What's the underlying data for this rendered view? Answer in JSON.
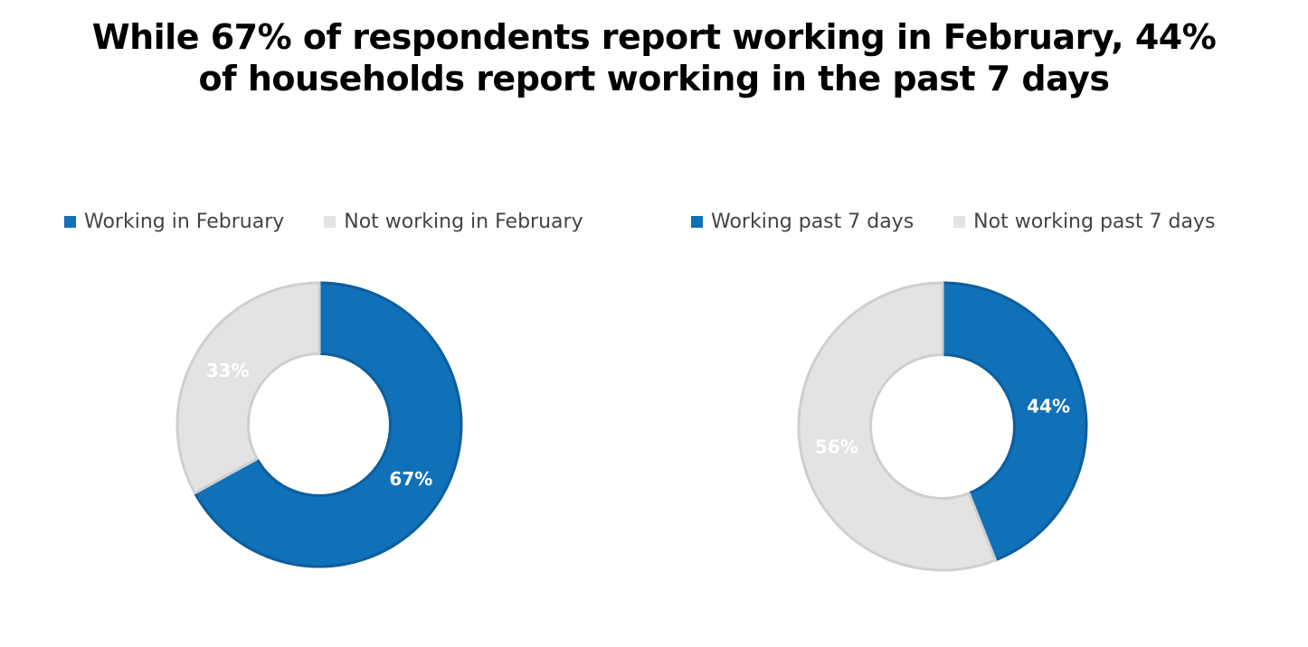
{
  "title": {
    "line1": "While 67% of respondents report working in February, 44%",
    "line2": "of households report working in the past 7 days"
  },
  "chart_data": [
    {
      "type": "pie",
      "donut": true,
      "categories": [
        "Working in February",
        "Not working in February"
      ],
      "values": [
        67,
        33
      ],
      "labels": [
        "67%",
        "33%"
      ],
      "colors": [
        "#1070b8",
        "#e3e3e3"
      ],
      "label_colors": [
        "#ffffff",
        "#ffffff"
      ],
      "legend_position": "top"
    },
    {
      "type": "pie",
      "donut": true,
      "categories": [
        "Working past 7 days",
        "Not working past 7 days"
      ],
      "values": [
        44,
        56
      ],
      "labels": [
        "44%",
        "56%"
      ],
      "colors": [
        "#1070b8",
        "#e3e3e3"
      ],
      "label_colors": [
        "#ffffff",
        "#ffffff"
      ],
      "legend_position": "top"
    }
  ]
}
